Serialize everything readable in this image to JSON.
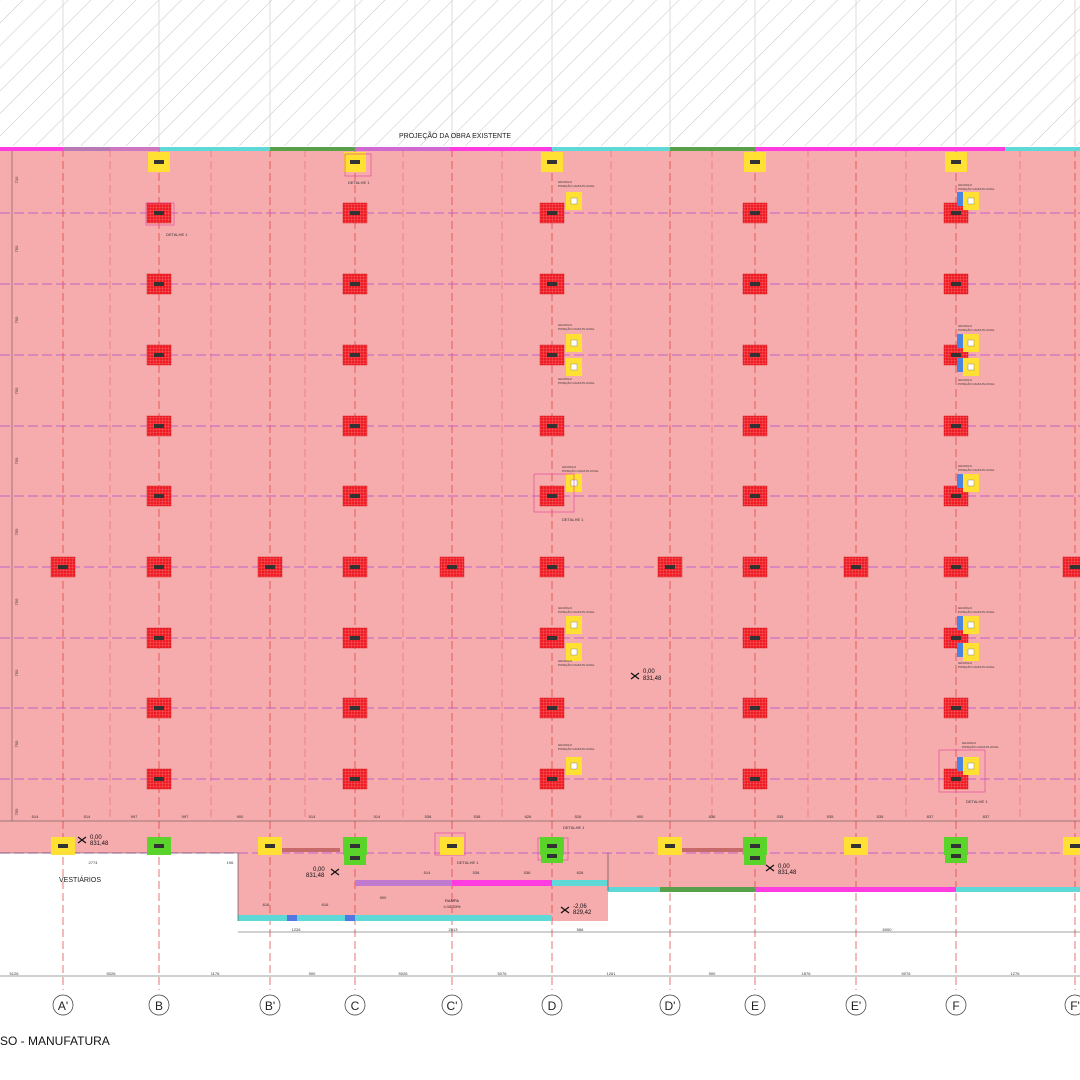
{
  "drawing": {
    "title": "SO - MANUFATURA",
    "projection_label": "PROJEÇÃO DA OBRA EXISTENTE",
    "vestiarios_label": "VESTIÁRIOS",
    "detail_label": "DETALHE 1",
    "ramp_label": "RAMPA",
    "ramp_sub": "i=10,33%",
    "note_text": "GR-ROLO",
    "note_sub": "POSIÇÃO CAIXA PLUVIAL"
  },
  "grid_axes": [
    "A'",
    "B",
    "B'",
    "C",
    "C'",
    "D",
    "D'",
    "E",
    "E'",
    "F",
    "F'"
  ],
  "bottom_dims": [
    "5126",
    "5026",
    "1176",
    "900",
    "5026",
    "5076",
    "1261",
    "900",
    "1876",
    "5076",
    "1276"
  ],
  "row_dims": [
    "514",
    "514",
    "997",
    "997",
    "900",
    "514",
    "514",
    "536",
    "538",
    "626",
    "526",
    "900",
    "836",
    "535",
    "535",
    "535",
    "837",
    "837"
  ],
  "lower_dims": {
    "d1": "2774",
    "d2": "196",
    "d3": "1226",
    "d4": "2513",
    "d5": "566",
    "d6": "6000",
    "d7": "514",
    "d8": "536",
    "d9": "536",
    "d10": "626",
    "d11": "616",
    "d12": "616",
    "d13": "900"
  },
  "side_dims": [
    "710",
    "750",
    "750",
    "750",
    "750",
    "750",
    "750",
    "750",
    "750",
    "750"
  ],
  "levels": {
    "main": [
      "0,00",
      "831,48"
    ],
    "left": [
      "0,00",
      "831,48"
    ],
    "mid": [
      "0,00",
      "831,48"
    ],
    "right": [
      "0,00",
      "831,48"
    ],
    "ramp": [
      "-2,06",
      "829,42"
    ]
  },
  "colors": {
    "slab": "#f6abad",
    "column": "#ee1c25",
    "yellow": "#ffe033",
    "green": "#5ad32b",
    "cyan": "#5fd8d8",
    "magenta": "#ff3ce0",
    "grid_red": "#e03a3a",
    "grid_purple": "#b24bd6"
  }
}
